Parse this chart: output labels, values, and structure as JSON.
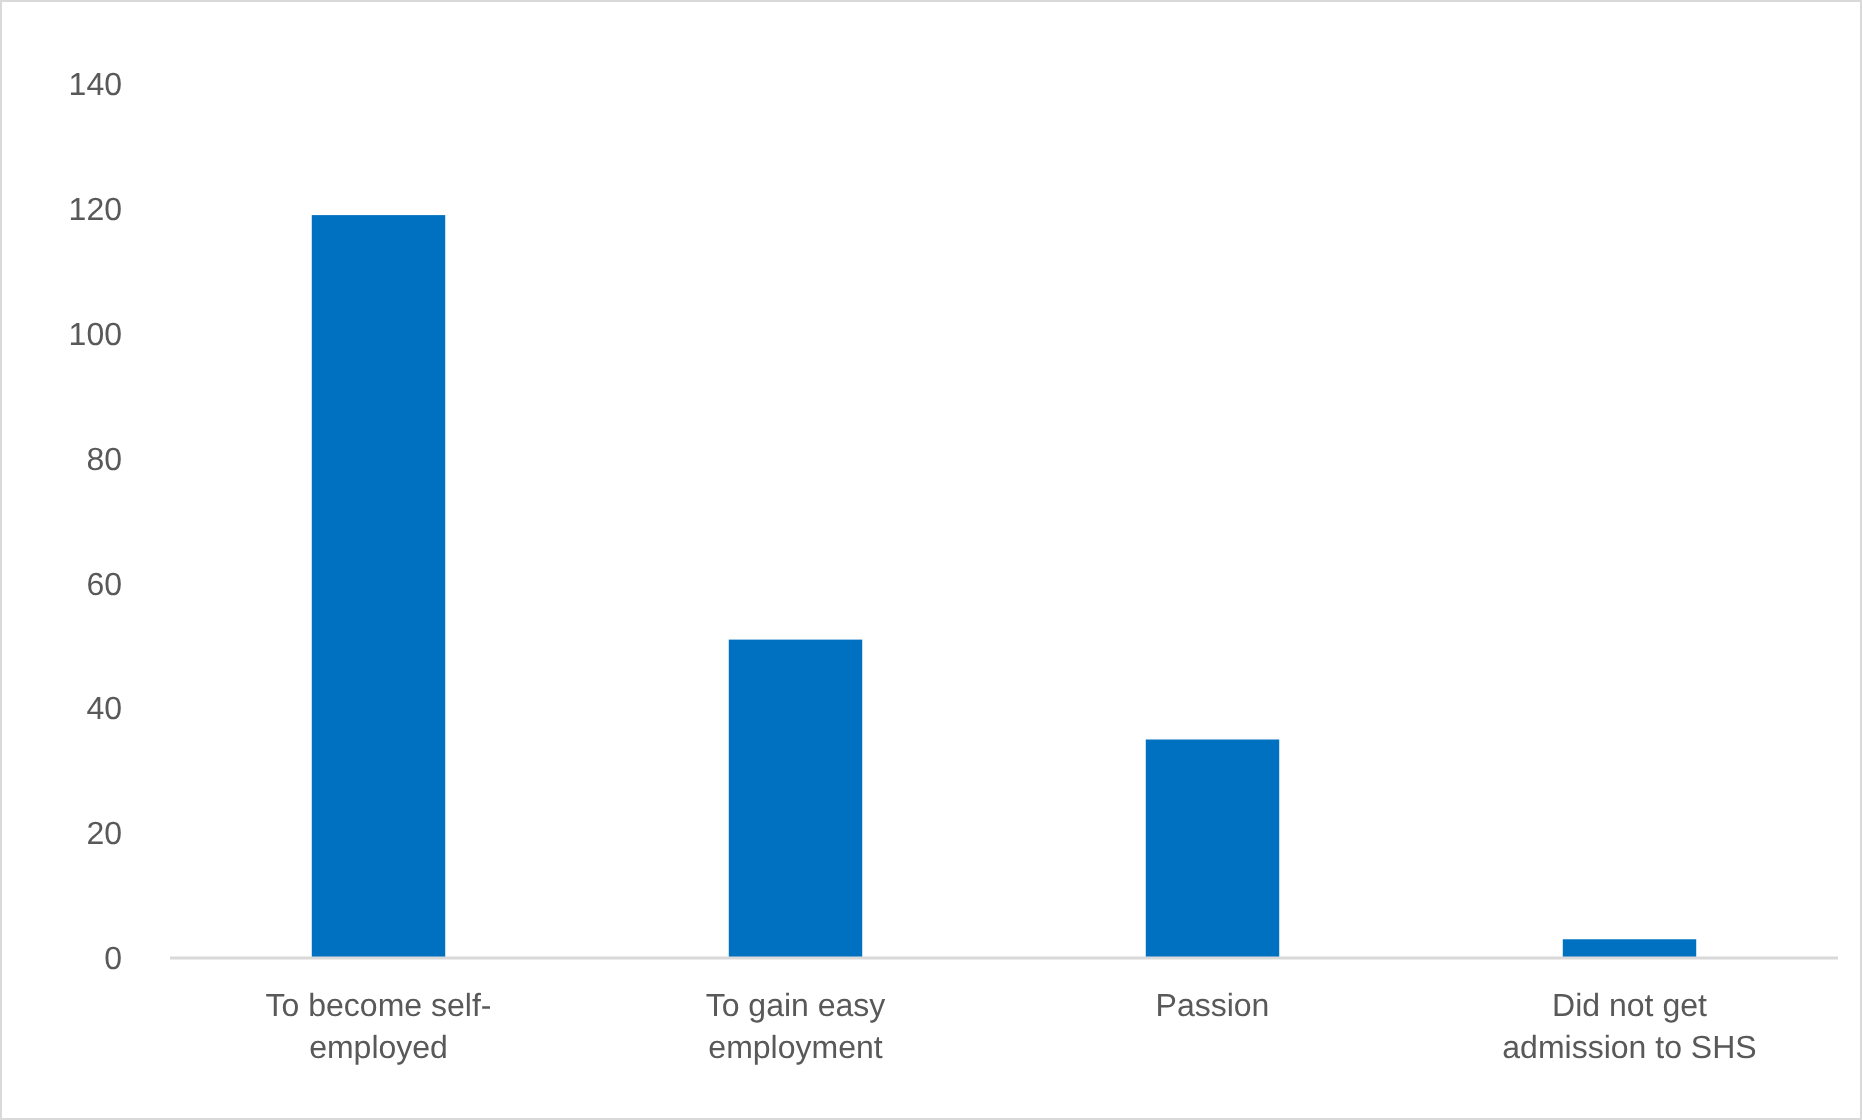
{
  "chart_data": {
    "type": "bar",
    "categories": [
      "To become self-employed",
      "To gain easy employment",
      "Passion",
      "Did not get admission to SHS"
    ],
    "values": [
      119,
      51,
      35,
      3
    ],
    "color": "#0070c0",
    "ylim": [
      0,
      140
    ],
    "yticks": [
      0,
      20,
      40,
      60,
      80,
      100,
      120,
      140
    ],
    "grid": false
  }
}
